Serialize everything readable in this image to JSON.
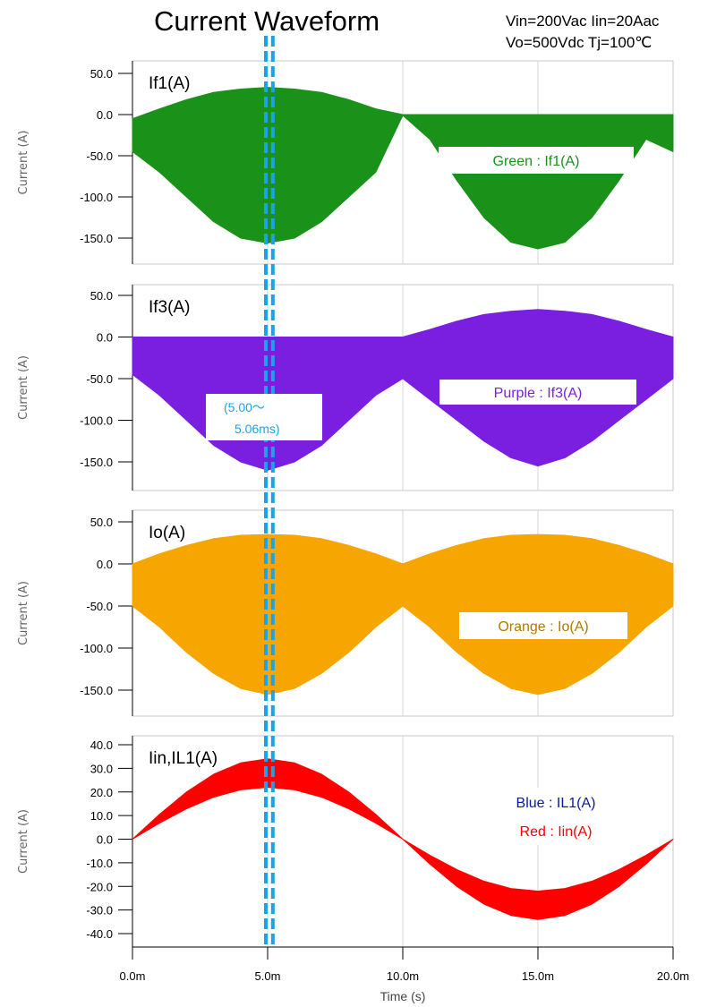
{
  "header": {
    "title": "Current Waveform",
    "conditions_line1": "Vin=200Vac Iin=20Aac",
    "conditions_line2": "Vo=500Vdc Tj=100℃"
  },
  "highlight": {
    "start_ms": 5.0,
    "end_ms": 5.06,
    "label_line1": "(5.00～",
    "label_line2": "5.06ms)",
    "color": "#1aa3e8"
  },
  "chart_data": [
    {
      "type": "area",
      "panel_label": "If1(A)",
      "ylabel": "Current (A)",
      "ylim": [
        -180,
        50
      ],
      "yticks": [
        50,
        0,
        -50,
        -100,
        -150
      ],
      "ytick_labels": [
        "50.0",
        "0.0",
        "-50.0",
        "-100.0",
        "-150.0"
      ],
      "x_unit": "ms",
      "xlim": [
        0,
        20
      ],
      "grid": true,
      "color": "#1a921a",
      "legend": "Green : If1(A)",
      "legend_color": "#1a921a",
      "series": [
        {
          "x": [
            0,
            1,
            2,
            3,
            4,
            5,
            6,
            7,
            8,
            9,
            10,
            11,
            12,
            13,
            14,
            15,
            16,
            17,
            18,
            19,
            20
          ],
          "upper": [
            -5,
            7,
            18,
            27,
            31,
            33,
            31,
            27,
            18,
            7,
            0,
            0,
            0,
            0,
            0,
            0,
            0,
            0,
            0,
            0,
            0
          ],
          "lower": [
            -45,
            -70,
            -100,
            -130,
            -150,
            -156,
            -150,
            -130,
            -100,
            -70,
            -1,
            -30,
            -80,
            -125,
            -155,
            -163,
            -155,
            -125,
            -80,
            -30,
            -45
          ]
        }
      ]
    },
    {
      "type": "area",
      "panel_label": "If3(A)",
      "ylabel": "Current (A)",
      "ylim": [
        -180,
        50
      ],
      "yticks": [
        50,
        0,
        -50,
        -100,
        -150
      ],
      "ytick_labels": [
        "50.0",
        "0.0",
        "-50.0",
        "-100.0",
        "-150.0"
      ],
      "x_unit": "ms",
      "xlim": [
        0,
        20
      ],
      "grid": true,
      "color": "#7a1ee0",
      "legend": "Purple : If3(A)",
      "legend_color": "#7a1ee0",
      "series": [
        {
          "x": [
            0,
            1,
            2,
            3,
            4,
            5,
            6,
            7,
            8,
            9,
            10,
            11,
            12,
            13,
            14,
            15,
            16,
            17,
            18,
            19,
            20
          ],
          "upper": [
            0,
            0,
            0,
            0,
            0,
            0,
            0,
            0,
            0,
            0,
            0,
            9,
            19,
            27,
            31,
            33,
            31,
            27,
            19,
            9,
            0
          ],
          "lower": [
            -45,
            -70,
            -100,
            -130,
            -150,
            -160,
            -150,
            -130,
            -100,
            -70,
            -50,
            -75,
            -100,
            -125,
            -145,
            -155,
            -145,
            -125,
            -100,
            -75,
            -50
          ]
        }
      ]
    },
    {
      "type": "area",
      "panel_label": "Io(A)",
      "ylabel": "Current (A)",
      "ylim": [
        -180,
        50
      ],
      "yticks": [
        50,
        0,
        -50,
        -100,
        -150
      ],
      "ytick_labels": [
        "50.0",
        "0.0",
        "-50.0",
        "-100.0",
        "-150.0"
      ],
      "x_unit": "ms",
      "xlim": [
        0,
        20
      ],
      "grid": true,
      "color": "#f7a500",
      "legend": "Orange : Io(A)",
      "legend_color": "#b07800",
      "series": [
        {
          "x": [
            0,
            1,
            2,
            3,
            4,
            5,
            6,
            7,
            8,
            9,
            10,
            11,
            12,
            13,
            14,
            15,
            16,
            17,
            18,
            19,
            20
          ],
          "upper": [
            0,
            12,
            22,
            30,
            34,
            35,
            34,
            30,
            22,
            12,
            0,
            12,
            22,
            30,
            34,
            35,
            34,
            30,
            22,
            12,
            0
          ],
          "lower": [
            -50,
            -75,
            -105,
            -130,
            -148,
            -155,
            -148,
            -130,
            -105,
            -75,
            -50,
            -75,
            -105,
            -130,
            -148,
            -155,
            -148,
            -130,
            -105,
            -75,
            -50
          ]
        }
      ]
    },
    {
      "type": "area",
      "panel_label": "Iin,IL1(A)",
      "ylabel": "Current (A)",
      "xlabel": "Time (s)",
      "ylim": [
        -45,
        42
      ],
      "yticks": [
        40,
        30,
        20,
        10,
        0,
        -10,
        -20,
        -30,
        -40
      ],
      "ytick_labels": [
        "40.0",
        "30.0",
        "20.0",
        "10.0",
        "0.0",
        "-10.0",
        "-20.0",
        "-30.0",
        "-40.0"
      ],
      "x_unit": "ms",
      "xlim": [
        0,
        20
      ],
      "xticks": [
        0,
        5,
        10,
        15,
        20
      ],
      "xtick_labels": [
        "0.0m",
        "5.0m",
        "10.0m",
        "15.0m",
        "20.0m"
      ],
      "grid": true,
      "color": "#ff0000",
      "legend": [
        "Blue : IL1(A)",
        "Red : Iin(A)"
      ],
      "legend_colors": [
        "#0a1a9c",
        "#ff0000"
      ],
      "series": [
        {
          "name": "Iin(A)",
          "x": [
            0,
            1,
            2,
            3,
            4,
            5,
            6,
            7,
            8,
            9,
            10,
            11,
            12,
            13,
            14,
            15,
            16,
            17,
            18,
            19,
            20
          ],
          "upper": [
            0,
            10.5,
            20,
            27.5,
            32.3,
            34,
            32.3,
            27.5,
            20,
            10.5,
            0,
            -6.8,
            -12.9,
            -17.8,
            -20.9,
            -22,
            -20.9,
            -17.8,
            -12.9,
            -6.8,
            0
          ],
          "lower": [
            0,
            6.8,
            12.9,
            17.8,
            20.9,
            22,
            20.9,
            17.8,
            12.9,
            6.8,
            0,
            -10.5,
            -20,
            -27.5,
            -32.3,
            -34,
            -32.3,
            -27.5,
            -20,
            -10.5,
            0
          ]
        }
      ]
    }
  ]
}
